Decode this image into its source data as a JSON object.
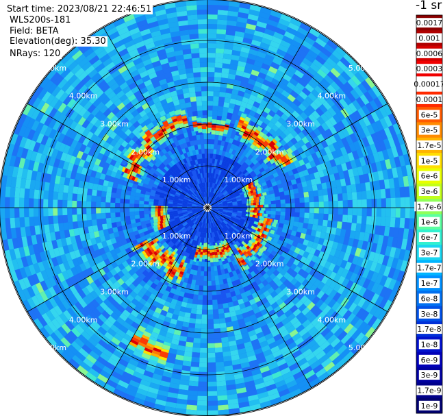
{
  "header": {
    "start_time": "Start time: 2023/08/21 22:46:51",
    "instrument": "WLS200s-181",
    "field": "Field: BETA",
    "elevation": "Elevation(deg): 35.30",
    "nrays": "NRays: 120"
  },
  "colorbar": {
    "title": "-1 sr",
    "labels": [
      "0.0017",
      "0.001",
      "0.0006",
      "0.0003",
      "0.00017",
      "0.0001",
      "6e-5",
      "3e-5",
      "1.7e-5",
      "1e-5",
      "6e-6",
      "3e-6",
      "1.7e-6",
      "1e-6",
      "6e-7",
      "3e-7",
      "1.7e-7",
      "1e-7",
      "6e-8",
      "3e-8",
      "1.7e-8",
      "1e-8",
      "6e-9",
      "3e-9",
      "1.7e-9",
      "1e-9"
    ],
    "colors": [
      "#8b0000",
      "#b00000",
      "#d40000",
      "#f00000",
      "#ffffff",
      "#ff2a00",
      "#ff5a00",
      "#ff8a00",
      "#ffb400",
      "#ffde00",
      "#e8ff00",
      "#c2ff1a",
      "#8fff5a",
      "#5cffa0",
      "#32f0d0",
      "#1ad6f0",
      "#00b4ff",
      "#0090ff",
      "#0070f0",
      "#0050e6",
      "#0030d8",
      "#0010cc",
      "#0000b8",
      "#0000a0",
      "#00008a",
      "#000070"
    ]
  },
  "chart_data": {
    "type": "heatmap",
    "title": "",
    "projection": "polar (PPI scan)",
    "field": "BETA",
    "units": "-1 sr",
    "elevation_deg": 35.3,
    "n_rays": 120,
    "range_rings_km": [
      1.0,
      2.0,
      3.0,
      4.0,
      5.0
    ],
    "range_ring_labels": [
      "1.00km",
      "2.00km",
      "3.00km",
      "4.00km",
      "5.00km"
    ],
    "spokes_every_deg": 30,
    "max_range_km": 4.9,
    "background_level": "1e-8 to 1e-7",
    "enhanced_features": [
      {
        "description": "ring of high backscatter",
        "range_km": [
          1.2,
          2.4
        ],
        "peak_value": "3e-5"
      },
      {
        "description": "distant arc (south-southwest)",
        "range_km": [
          3.4,
          3.9
        ],
        "peak_value": "6e-5"
      }
    ]
  }
}
